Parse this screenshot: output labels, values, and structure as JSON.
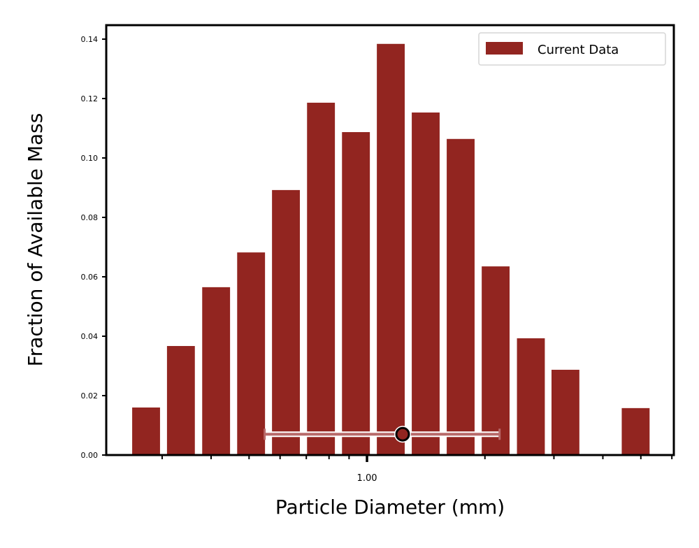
{
  "chart_data": {
    "type": "bar",
    "xscale": "log",
    "xlabel": "Particle Diameter (mm)",
    "ylabel": "Fraction of Available Mass",
    "xlim": [
      0.216,
      6.07
    ],
    "ylim": [
      0,
      0.1447
    ],
    "x_major_ticks": [
      {
        "value": 1.0,
        "label": "1.00"
      }
    ],
    "x_minor_ticks": [
      0.3,
      0.4,
      0.5,
      0.6,
      0.7,
      0.8,
      0.9,
      2,
      3,
      4,
      5,
      6
    ],
    "y_ticks": [
      {
        "value": 0.0,
        "label": "0.00"
      },
      {
        "value": 0.02,
        "label": "0.02"
      },
      {
        "value": 0.04,
        "label": "0.04"
      },
      {
        "value": 0.06,
        "label": "0.06"
      },
      {
        "value": 0.08,
        "label": "0.08"
      },
      {
        "value": 0.1,
        "label": "0.10"
      },
      {
        "value": 0.12,
        "label": "0.12"
      },
      {
        "value": 0.14,
        "label": "0.14"
      }
    ],
    "grid": false,
    "legend": {
      "position": "top-right",
      "entries": [
        "Current Data"
      ]
    },
    "bar_width_fraction": 0.8,
    "series": [
      {
        "name": "Current Data",
        "color": "#922520",
        "x": [
          0.273,
          0.335,
          0.412,
          0.506,
          0.621,
          0.763,
          0.937,
          1.15,
          1.412,
          1.734,
          2.13,
          2.62,
          3.21,
          3.95,
          4.85
        ],
        "values": [
          0.016,
          0.0367,
          0.0565,
          0.0682,
          0.0892,
          0.1186,
          0.1087,
          0.1384,
          0.1153,
          0.1064,
          0.0635,
          0.0393,
          0.0287,
          0,
          0.0158
        ]
      }
    ],
    "summary_marker": {
      "center": 1.233,
      "lower": 0.548,
      "upper": 2.18,
      "y": 0.007,
      "marker_color": "#922520",
      "bar_color": "#b86a6a"
    }
  }
}
